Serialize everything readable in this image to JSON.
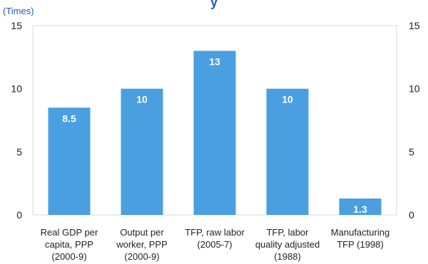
{
  "chart_data": {
    "type": "bar",
    "title": "y",
    "unit_label": "(Times)",
    "categories": [
      [
        "Real GDP per",
        "capita, PPP",
        "(2000-9)"
      ],
      [
        "Output per",
        "worker, PPP",
        "(2000-9)"
      ],
      [
        "TFP, raw labor",
        "(2005-7)"
      ],
      [
        "TFP, labor",
        "quality adjusted",
        "(1988)"
      ],
      [
        "Manufacturing",
        "TFP (1998)"
      ]
    ],
    "values": [
      8.5,
      10,
      13,
      10,
      1.3
    ],
    "data_labels": [
      "8.5",
      "10",
      "13",
      "10",
      "1.3"
    ],
    "ylim": [
      0,
      15
    ],
    "yticks": [
      "0",
      "5",
      "10",
      "15"
    ],
    "ytick_values": [
      0,
      5,
      10,
      15
    ],
    "secondary_axis": true,
    "grid": false,
    "bar_color": "#4a9fe0"
  }
}
